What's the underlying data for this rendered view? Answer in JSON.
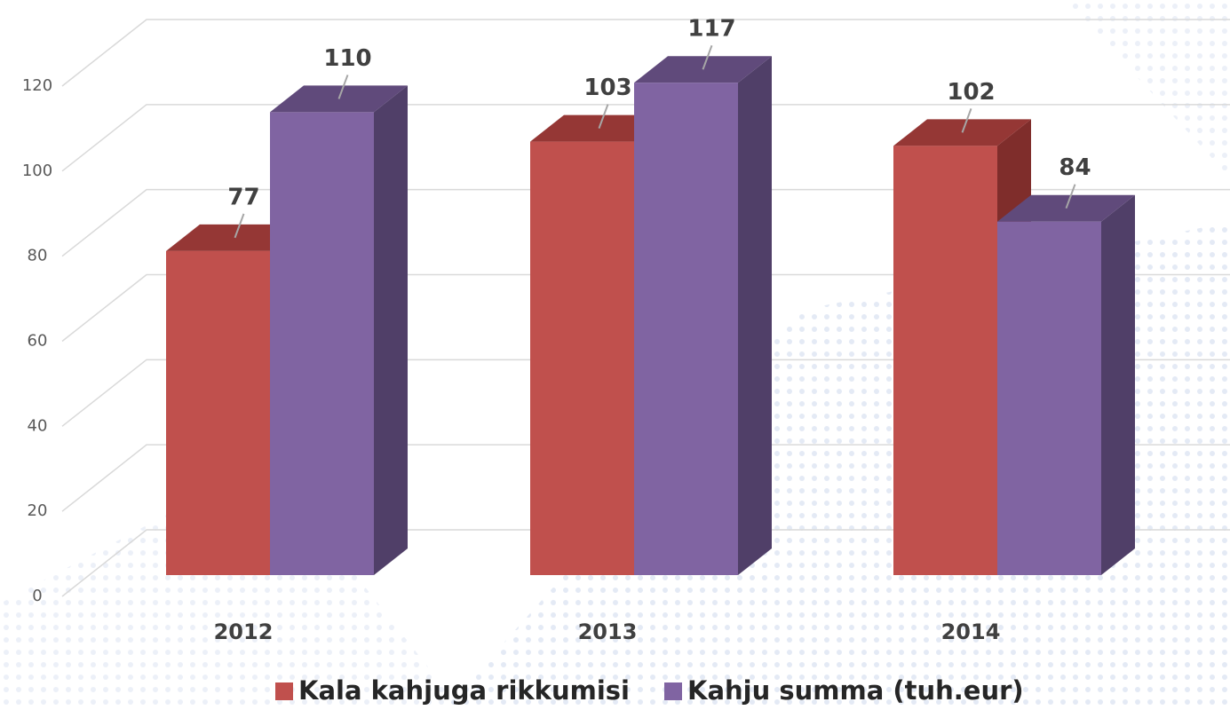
{
  "chart_data": {
    "type": "bar3d",
    "categories": [
      "2012",
      "2013",
      "2014"
    ],
    "series": [
      {
        "name": "Kala kahjuga rikkumisi",
        "color": "#c0504d",
        "top_color": "#953735",
        "side_color": "#7f2d2b",
        "values": [
          77,
          103,
          102
        ]
      },
      {
        "name": "Kahju summa (tuh.eur)",
        "color": "#8064a2",
        "top_color": "#604a7b",
        "side_color": "#503f68",
        "values": [
          110,
          117,
          84
        ]
      }
    ],
    "ylim": [
      0,
      120
    ],
    "yticks": [
      0,
      20,
      40,
      60,
      80,
      100,
      120
    ],
    "grid": true
  }
}
